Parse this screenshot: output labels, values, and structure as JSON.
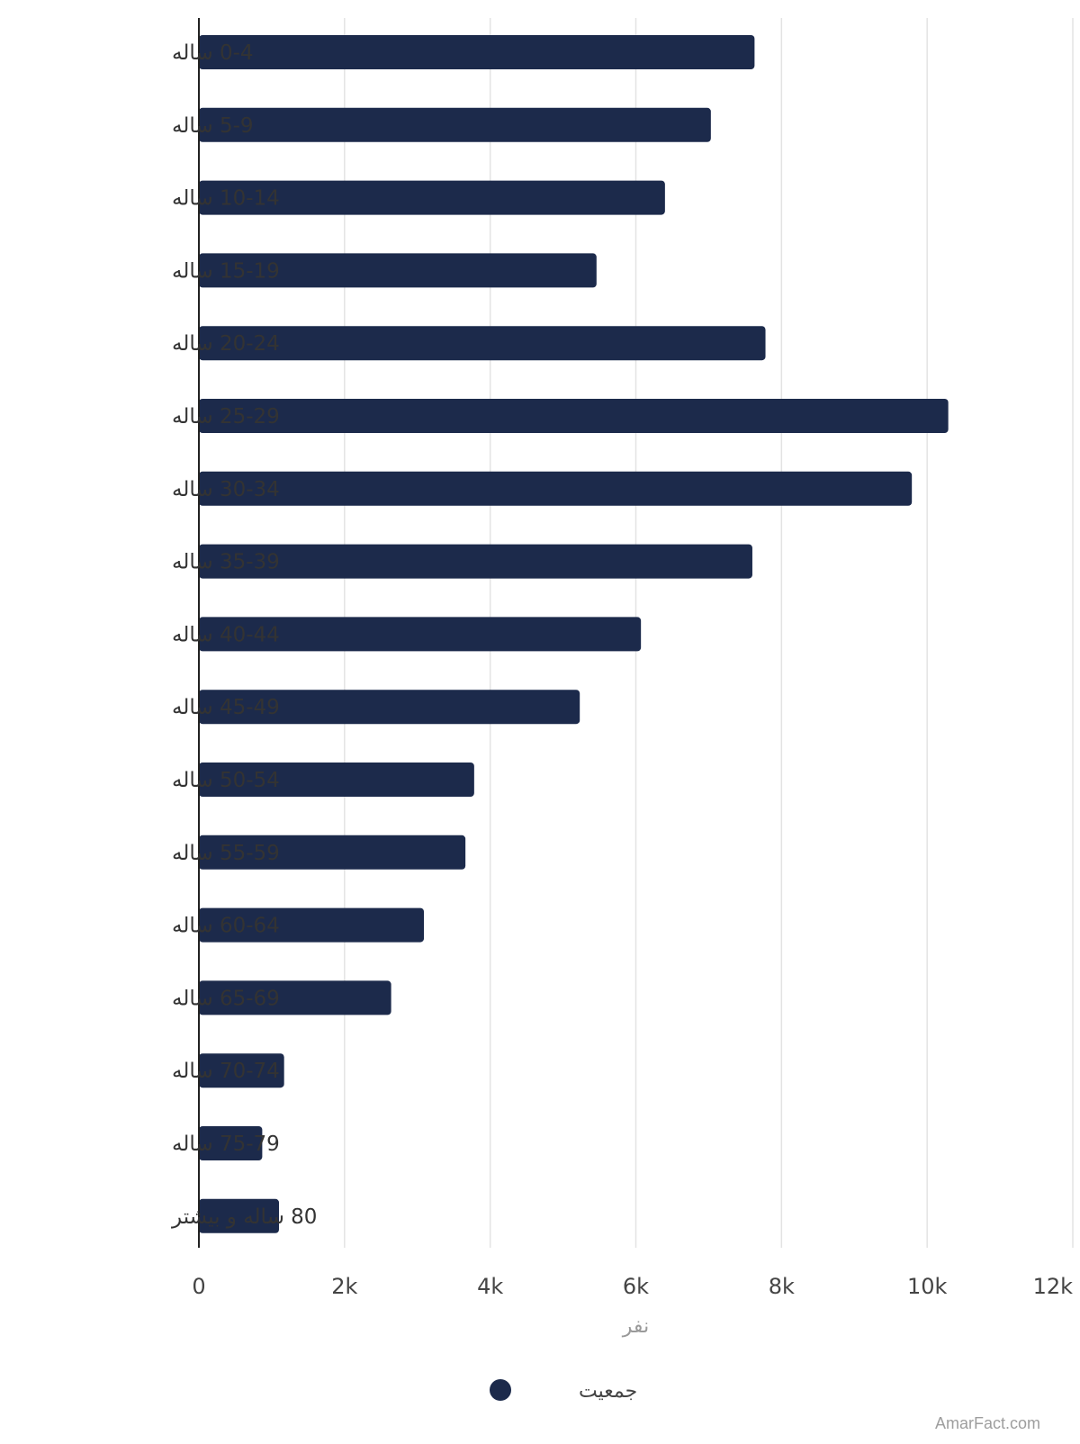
{
  "chart_data": {
    "type": "bar",
    "orientation": "horizontal",
    "categories": [
      "0-4 ساله",
      "5-9 ساله",
      "10-14 ساله",
      "15-19 ساله",
      "20-24 ساله",
      "25-29 ساله",
      "30-34 ساله",
      "35-39 ساله",
      "40-44 ساله",
      "45-49 ساله",
      "50-54 ساله",
      "55-59 ساله",
      "60-64 ساله",
      "65-69 ساله",
      "70-74 ساله",
      "75-79 ساله",
      "80 ساله و بیشتر"
    ],
    "series": [
      {
        "name": "جمعیت",
        "color": "#1c2a4b",
        "values": [
          7630,
          7030,
          6400,
          5460,
          7780,
          10290,
          9790,
          7600,
          6070,
          5230,
          3780,
          3660,
          3090,
          2640,
          1170,
          870,
          1100
        ]
      }
    ],
    "xlabel": "نفر",
    "xlim": [
      0,
      12000
    ],
    "x_ticks": [
      "0",
      "2k",
      "4k",
      "6k",
      "8k",
      "10k",
      "12k"
    ],
    "x_tick_values": [
      0,
      2000,
      4000,
      6000,
      8000,
      10000,
      12000
    ],
    "grid": "vertical",
    "legend_position": "bottom"
  },
  "credit": "AmarFact.com"
}
